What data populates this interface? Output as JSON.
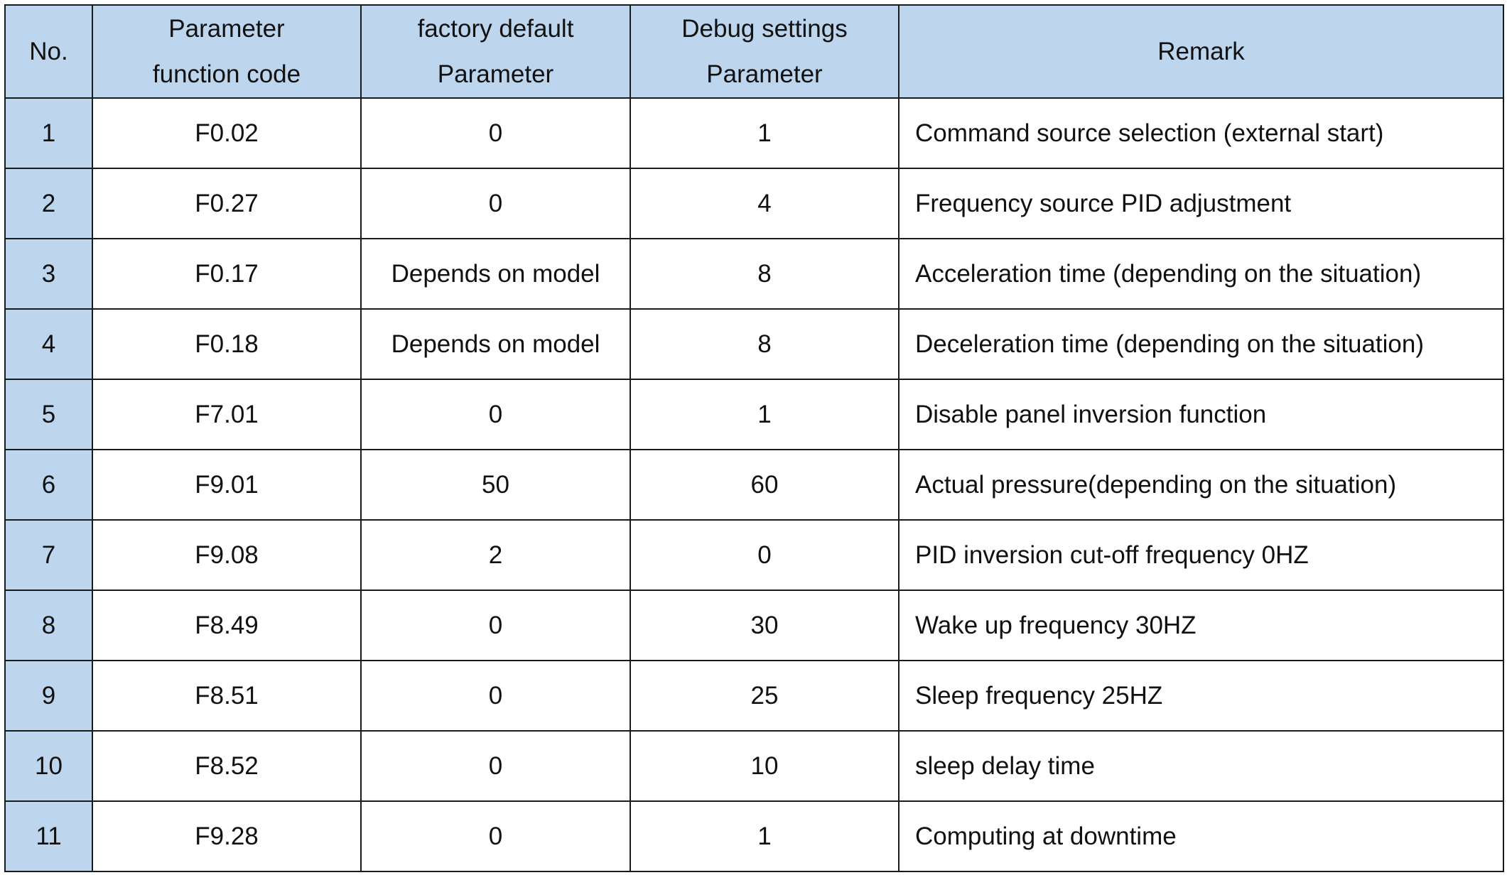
{
  "table": {
    "headers": {
      "no": "No.",
      "code_line1": "Parameter",
      "code_line2": "function code",
      "default_line1": "factory default",
      "default_line2": "Parameter",
      "debug_line1": "Debug settings",
      "debug_line2": "Parameter",
      "remark": "Remark"
    },
    "rows": [
      {
        "no": "1",
        "code": "F0.02",
        "default": "0",
        "debug": "1",
        "remark": "Command source selection (external start)"
      },
      {
        "no": "2",
        "code": "F0.27",
        "default": "0",
        "debug": "4",
        "remark": "Frequency source PID adjustment"
      },
      {
        "no": "3",
        "code": "F0.17",
        "default": "Depends on model",
        "debug": "8",
        "remark": "Acceleration time (depending on the situation)"
      },
      {
        "no": "4",
        "code": "F0.18",
        "default": "Depends on model",
        "debug": "8",
        "remark": "Deceleration time (depending on the situation)"
      },
      {
        "no": "5",
        "code": "F7.01",
        "default": "0",
        "debug": "1",
        "remark": "Disable panel inversion function"
      },
      {
        "no": "6",
        "code": "F9.01",
        "default": "50",
        "debug": "60",
        "remark": "Actual pressure(depending on the situation)"
      },
      {
        "no": "7",
        "code": "F9.08",
        "default": "2",
        "debug": "0",
        "remark": "PID inversion cut-off frequency 0HZ"
      },
      {
        "no": "8",
        "code": "F8.49",
        "default": "0",
        "debug": "30",
        "remark": "Wake up frequency 30HZ"
      },
      {
        "no": "9",
        "code": "F8.51",
        "default": "0",
        "debug": "25",
        "remark": "Sleep frequency 25HZ"
      },
      {
        "no": "10",
        "code": "F8.52",
        "default": "0",
        "debug": "10",
        "remark": "sleep delay time"
      },
      {
        "no": "11",
        "code": "F9.28",
        "default": "0",
        "debug": "1",
        "remark": "Computing at downtime"
      }
    ]
  },
  "colors": {
    "header_bg": "#bdd6ee",
    "border": "#1a1a1a"
  }
}
